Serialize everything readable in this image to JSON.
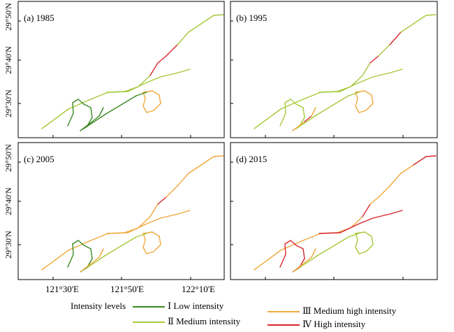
{
  "panels": [
    {
      "label": "(a) 1985"
    },
    {
      "label": "(b) 1995"
    },
    {
      "label": "(c) 2005"
    },
    {
      "label": "(d) 2015"
    }
  ],
  "axes": {
    "x_ticks": [
      "121°30'E",
      "121°50'E",
      "122°10'E"
    ],
    "y_ticks": [
      "29°50'N",
      "29°40'N",
      "29°30'N"
    ]
  },
  "legend": {
    "title": "Intensity levels",
    "items": [
      {
        "label": "Ⅰ Low intensity",
        "color": "#3a8a22"
      },
      {
        "label": "Ⅱ Medium intensity",
        "color": "#a6c93a"
      },
      {
        "label": "Ⅲ Medium high intensity",
        "color": "#f0a83c"
      },
      {
        "label": "Ⅳ High intensity",
        "color": "#d8262e"
      }
    ]
  }
}
